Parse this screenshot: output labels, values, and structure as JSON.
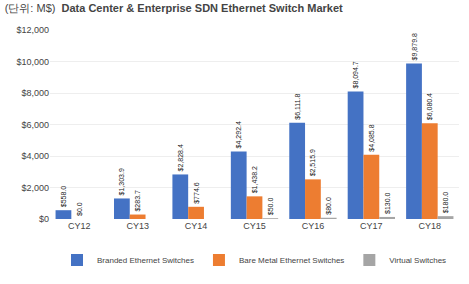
{
  "chart_data": {
    "type": "bar",
    "title": "Data Center & Enterprise SDN Ethernet Switch Market",
    "subtitle": "(단위: M$)",
    "categories": [
      "CY12",
      "CY13",
      "CY14",
      "CY15",
      "CY16",
      "CY17",
      "CY18"
    ],
    "series": [
      {
        "name": "Branded Ethernet Switches",
        "color": "#4472C4",
        "values": [
          558.0,
          1303.9,
          2828.4,
          4292.4,
          6111.8,
          8094.7,
          9879.8
        ],
        "value_labels": [
          "$558.0",
          "$1,303.9",
          "$2,828.4",
          "$4,292.4",
          "$6,111.8",
          "$8,094.7",
          "$9,879.8"
        ]
      },
      {
        "name": "Bare Metal Ethernet Switches",
        "color": "#ED7D31",
        "values": [
          0.0,
          283.7,
          774.6,
          1438.2,
          2515.9,
          4085.8,
          6080.4
        ],
        "value_labels": [
          "$0.0",
          "$283.7",
          "$774.6",
          "$1,438.2",
          "$2,515.9",
          "$4,085.8",
          "$6,080.4"
        ]
      },
      {
        "name": "Virtual Switches",
        "color": "#A5A5A5",
        "values": [
          0.0,
          0.0,
          0.0,
          50.0,
          80.0,
          130.0,
          180.0
        ],
        "value_labels": [
          null,
          null,
          null,
          "$50.0",
          "$80.0",
          "$130.0",
          "$180.0"
        ]
      }
    ],
    "ylim": [
      0,
      12000
    ],
    "yticks": [
      {
        "value": 0,
        "label": "$0"
      },
      {
        "value": 2000,
        "label": "$2,000"
      },
      {
        "value": 4000,
        "label": "$4,000"
      },
      {
        "value": 6000,
        "label": "$6,000"
      },
      {
        "value": 8000,
        "label": "$8,000"
      },
      {
        "value": 10000,
        "label": "$10,000"
      },
      {
        "value": 12000,
        "label": "$12,000"
      }
    ],
    "grid": true,
    "legend": "bottom",
    "data_labels": true
  }
}
